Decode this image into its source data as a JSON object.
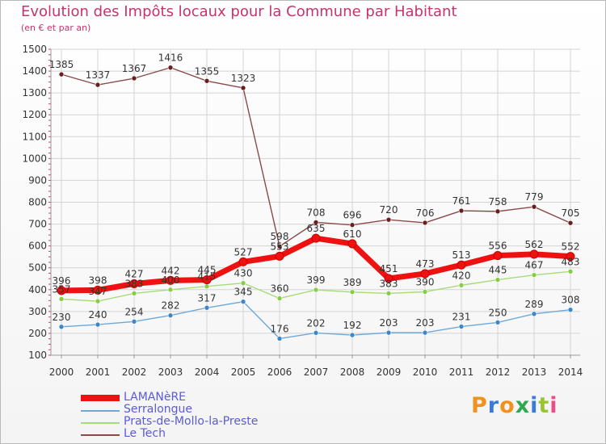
{
  "title": "Evolution des Impôts locaux pour la Commune par Habitant",
  "subtitle": "(en € et par an)",
  "logo": {
    "text": "Proxiti",
    "colors": [
      "#f0921e",
      "#3a7bd5",
      "#f0921e",
      "#2fa84f",
      "#3a7bd5",
      "#9ac433",
      "#e84e8a"
    ]
  },
  "chart_data": {
    "type": "line",
    "title": "Evolution des Impôts locaux pour la Commune par Habitant",
    "subtitle": "(en € et par an)",
    "xlabel": "",
    "ylabel": "",
    "x": [
      "2000",
      "2001",
      "2002",
      "2003",
      "2004",
      "2005",
      "2006",
      "2007",
      "2008",
      "2009",
      "2010",
      "2011",
      "2012",
      "2013",
      "2014"
    ],
    "ylim": [
      100,
      1500
    ],
    "yticks": [
      100,
      200,
      300,
      400,
      500,
      600,
      700,
      800,
      900,
      1000,
      1100,
      1200,
      1300,
      1400,
      1500
    ],
    "grid": true,
    "legend_position": "bottom-left",
    "series": [
      {
        "name": "LAMANèRE",
        "color": "#ee1111",
        "marker": "#ee1111",
        "width": 7,
        "values": [
          396,
          398,
          427,
          442,
          445,
          527,
          553,
          635,
          610,
          451,
          473,
          513,
          556,
          562,
          552
        ],
        "labels": [
          "396",
          "398",
          "427",
          "442",
          "445",
          "527",
          "553",
          "635",
          "610",
          "451",
          "473",
          "513",
          "556",
          "562",
          "552"
        ]
      },
      {
        "name": "Serralongue",
        "color": "#6ea8d8",
        "marker": "#3f86c9",
        "width": 1.4,
        "values": [
          230,
          240,
          254,
          282,
          317,
          345,
          176,
          202,
          192,
          203,
          203,
          231,
          250,
          289,
          308
        ],
        "labels": [
          "230",
          "240",
          "254",
          "282",
          "317",
          "345",
          "176",
          "202",
          "192",
          "203",
          "203",
          "231",
          "250",
          "289",
          "308"
        ]
      },
      {
        "name": "Prats-de-Mollo-la-Preste",
        "color": "#a6dc78",
        "marker": "#86cc44",
        "width": 1.4,
        "values": [
          357,
          347,
          383,
          400,
          415,
          430,
          360,
          399,
          389,
          383,
          390,
          420,
          445,
          467,
          483
        ],
        "labels": [
          "357",
          "347",
          "383",
          "400",
          "415",
          "430",
          "360",
          "399",
          "389",
          "383",
          "390",
          "420",
          "445",
          "467",
          "483"
        ]
      },
      {
        "name": "Le Tech",
        "color": "#8a4a4a",
        "marker": "#6a1f1f",
        "width": 1.4,
        "values": [
          1385,
          1337,
          1367,
          1416,
          1355,
          1323,
          598,
          708,
          696,
          720,
          706,
          761,
          758,
          779,
          705
        ],
        "labels": [
          "1385",
          "1337",
          "1367",
          "1416",
          "1355",
          "1323",
          "598",
          "708",
          "696",
          "720",
          "706",
          "761",
          "758",
          "779",
          "705"
        ]
      }
    ]
  }
}
